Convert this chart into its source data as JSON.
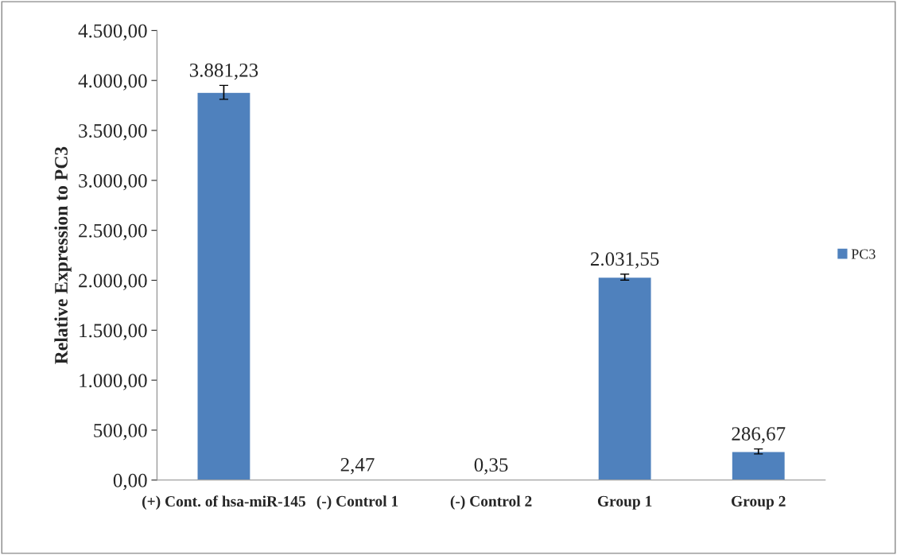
{
  "chart_data": {
    "type": "bar",
    "ylabel": "Relative Expression to PC3",
    "categories": [
      "(+) Cont. of hsa-miR-145",
      "(-) Control 1",
      "(-) Control 2",
      "Group 1",
      "Group 2"
    ],
    "series": [
      {
        "name": "PC3",
        "color": "#4f81bd",
        "values": [
          3881.23,
          2.47,
          0.35,
          2031.55,
          286.67
        ],
        "errors": [
          70,
          null,
          null,
          30,
          25
        ],
        "value_labels": [
          "3.881,23",
          "2,47",
          "0,35",
          "2.031,55",
          "286,67"
        ]
      }
    ],
    "ylim": [
      0,
      4500
    ],
    "yticks": [
      {
        "value": 0,
        "label": "0,00"
      },
      {
        "value": 500,
        "label": "500,00"
      },
      {
        "value": 1000,
        "label": "1.000,00"
      },
      {
        "value": 1500,
        "label": "1.500,00"
      },
      {
        "value": 2000,
        "label": "2.000,00"
      },
      {
        "value": 2500,
        "label": "2.500,00"
      },
      {
        "value": 3000,
        "label": "3.000,00"
      },
      {
        "value": 3500,
        "label": "3.500,00"
      },
      {
        "value": 4000,
        "label": "4.000,00"
      },
      {
        "value": 4500,
        "label": "4.500,00"
      }
    ],
    "legend": "right",
    "grid": false
  }
}
